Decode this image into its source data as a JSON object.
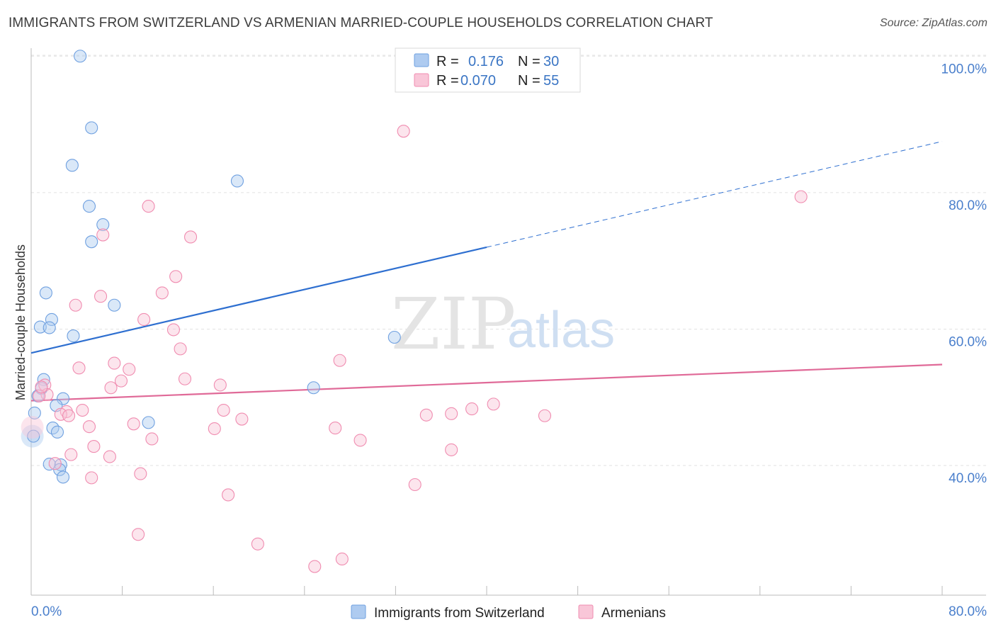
{
  "title": "IMMIGRANTS FROM SWITZERLAND VS ARMENIAN MARRIED-COUPLE HOUSEHOLDS CORRELATION CHART",
  "source": "Source: ZipAtlas.com",
  "watermark": {
    "zip": "ZIP",
    "atlas": "atlas"
  },
  "chart_data": {
    "type": "scatter",
    "xlabel": "",
    "ylabel": "Married-couple Households",
    "xlim": [
      0,
      80
    ],
    "ylim": [
      21,
      102
    ],
    "y_ticks": [
      {
        "value": 40,
        "label": "40.0%"
      },
      {
        "value": 60,
        "label": "60.0%"
      },
      {
        "value": 80,
        "label": "80.0%"
      },
      {
        "value": 100,
        "label": "100.0%"
      }
    ],
    "x_ticks_labels": [
      {
        "value": 0,
        "label": "0.0%"
      },
      {
        "value": 80,
        "label": "80.0%"
      }
    ],
    "x_minor_ticks": [
      0,
      8,
      16,
      24,
      32,
      40,
      48,
      56,
      64,
      72,
      80
    ],
    "legend_top": [
      {
        "r_label": "R =",
        "r": "0.176",
        "n_label": "N =",
        "n": "30",
        "color": "#6fa0e0"
      },
      {
        "r_label": "R =",
        "r": "0.070",
        "n_label": "N =",
        "n": "55",
        "color": "#f08cb0"
      }
    ],
    "series": [
      {
        "name": "Immigrants from Switzerland",
        "color": "#6fa0e0",
        "fill": "#aecbf0",
        "trend": {
          "x0": 0,
          "y0": 56.5,
          "x1": 40,
          "y1": 72,
          "x_dash_end": 80,
          "y_dash_end": 87.5,
          "color": "#2e6fd0"
        },
        "points": [
          [
            4.3,
            100
          ],
          [
            5.3,
            89.5
          ],
          [
            3.6,
            84
          ],
          [
            18.1,
            81.7
          ],
          [
            5.1,
            78
          ],
          [
            6.3,
            75.3
          ],
          [
            5.3,
            72.8
          ],
          [
            1.3,
            65.3
          ],
          [
            7.3,
            63.5
          ],
          [
            1.8,
            61.4
          ],
          [
            0.8,
            60.3
          ],
          [
            1.6,
            60.2
          ],
          [
            3.7,
            59
          ],
          [
            31.9,
            58.8
          ],
          [
            1.1,
            52.6
          ],
          [
            0.9,
            51.3
          ],
          [
            24.8,
            51.4
          ],
          [
            0.6,
            50.2
          ],
          [
            2.8,
            49.8
          ],
          [
            2.2,
            48.8
          ],
          [
            0.3,
            47.7
          ],
          [
            10.3,
            46.3
          ],
          [
            1.9,
            45.5
          ],
          [
            2.3,
            44.9
          ],
          [
            0.2,
            44.3
          ],
          [
            1.6,
            40.2
          ],
          [
            2.6,
            40.1
          ],
          [
            2.5,
            39.4
          ],
          [
            2.8,
            38.3
          ]
        ],
        "big_points": [
          [
            0.1,
            44.3
          ]
        ]
      },
      {
        "name": "Armenians",
        "color": "#f08cb0",
        "fill": "#f9c6d8",
        "trend": {
          "x0": 0,
          "y0": 49.5,
          "x1": 80,
          "y1": 54.8,
          "color": "#e06a98"
        },
        "points": [
          [
            32.7,
            89
          ],
          [
            67.6,
            79.4
          ],
          [
            10.3,
            78
          ],
          [
            14,
            73.5
          ],
          [
            6.3,
            73.8
          ],
          [
            12.7,
            67.7
          ],
          [
            6.1,
            64.8
          ],
          [
            11.5,
            65.3
          ],
          [
            3.9,
            63.5
          ],
          [
            9.9,
            61.4
          ],
          [
            12.5,
            59.9
          ],
          [
            13.1,
            57.1
          ],
          [
            27.1,
            55.4
          ],
          [
            7.3,
            55
          ],
          [
            4.2,
            54.3
          ],
          [
            8.6,
            54.1
          ],
          [
            13.5,
            52.7
          ],
          [
            7.9,
            52.4
          ],
          [
            16.6,
            51.8
          ],
          [
            7,
            51.4
          ],
          [
            1.2,
            51.8
          ],
          [
            1.4,
            50.4
          ],
          [
            0.7,
            50.2
          ],
          [
            16.9,
            48.1
          ],
          [
            40.6,
            49
          ],
          [
            38.7,
            48.3
          ],
          [
            36.9,
            47.6
          ],
          [
            34.7,
            47.4
          ],
          [
            45.1,
            47.3
          ],
          [
            4.5,
            48.1
          ],
          [
            3.1,
            47.9
          ],
          [
            2.6,
            47.5
          ],
          [
            3.3,
            47.3
          ],
          [
            18.5,
            46.8
          ],
          [
            9,
            46.1
          ],
          [
            5.1,
            45.7
          ],
          [
            16.1,
            45.4
          ],
          [
            26.7,
            45.5
          ],
          [
            28.9,
            43.7
          ],
          [
            10.6,
            43.9
          ],
          [
            5.5,
            42.8
          ],
          [
            36.9,
            42.3
          ],
          [
            3.5,
            41.6
          ],
          [
            6.9,
            41.3
          ],
          [
            2.1,
            40.3
          ],
          [
            9.6,
            38.8
          ],
          [
            5.3,
            38.2
          ],
          [
            33.7,
            37.2
          ],
          [
            17.3,
            35.7
          ],
          [
            9.4,
            29.9
          ],
          [
            19.9,
            28.5
          ],
          [
            27.3,
            26.3
          ],
          [
            24.9,
            25.2
          ],
          [
            0.9,
            51.5
          ]
        ],
        "big_points": [
          [
            0.1,
            45.6
          ]
        ]
      }
    ],
    "legend_bottom": [
      {
        "label": "Immigrants from Switzerland",
        "color": "#6fa0e0",
        "fill": "#aecbf0"
      },
      {
        "label": "Armenians",
        "color": "#f08cb0",
        "fill": "#f9c6d8"
      }
    ]
  }
}
